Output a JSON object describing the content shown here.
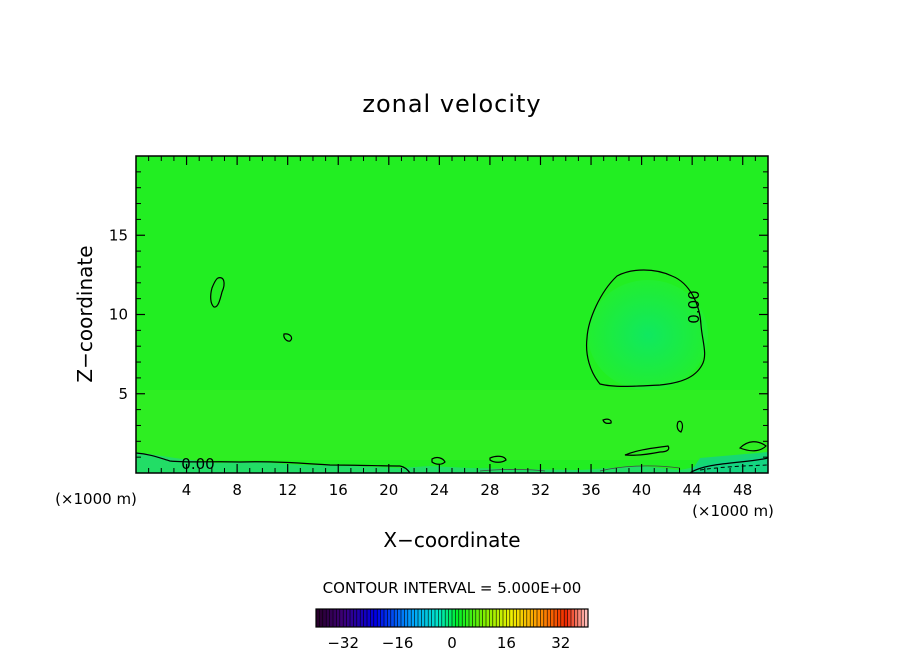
{
  "chart_data": {
    "type": "heatmap",
    "title": "zonal velocity",
    "xlabel": "X−coordinate",
    "ylabel": "Z−coordinate",
    "x_unit_left": "(×1000 m)",
    "x_unit_right": "(×1000 m)",
    "xlim": [
      0,
      50
    ],
    "ylim": [
      0,
      20
    ],
    "x_ticks": [
      4,
      8,
      12,
      16,
      20,
      24,
      28,
      32,
      36,
      40,
      44,
      48
    ],
    "y_ticks": [
      5,
      10,
      15
    ],
    "grid": false,
    "contour_interval_text": "CONTOUR INTERVAL = 5.000E+00",
    "contour_labels": [
      "0.00",
      "0.00"
    ],
    "colorbar": {
      "range": [
        -40,
        40
      ],
      "ticks": [
        -32,
        -16,
        0,
        16,
        32
      ],
      "tick_labels": [
        "−32",
        "−16",
        "0",
        "16",
        "32"
      ]
    },
    "field_description": "near-zero zonal velocity everywhere (green); weak negative region centered near x=40, z=8; thin near-surface layer below z~1",
    "background_value": 0,
    "colors": {
      "background_field": "#22ee22",
      "negative_blob": "#11e655",
      "surface_layer": "#22dd66"
    }
  }
}
